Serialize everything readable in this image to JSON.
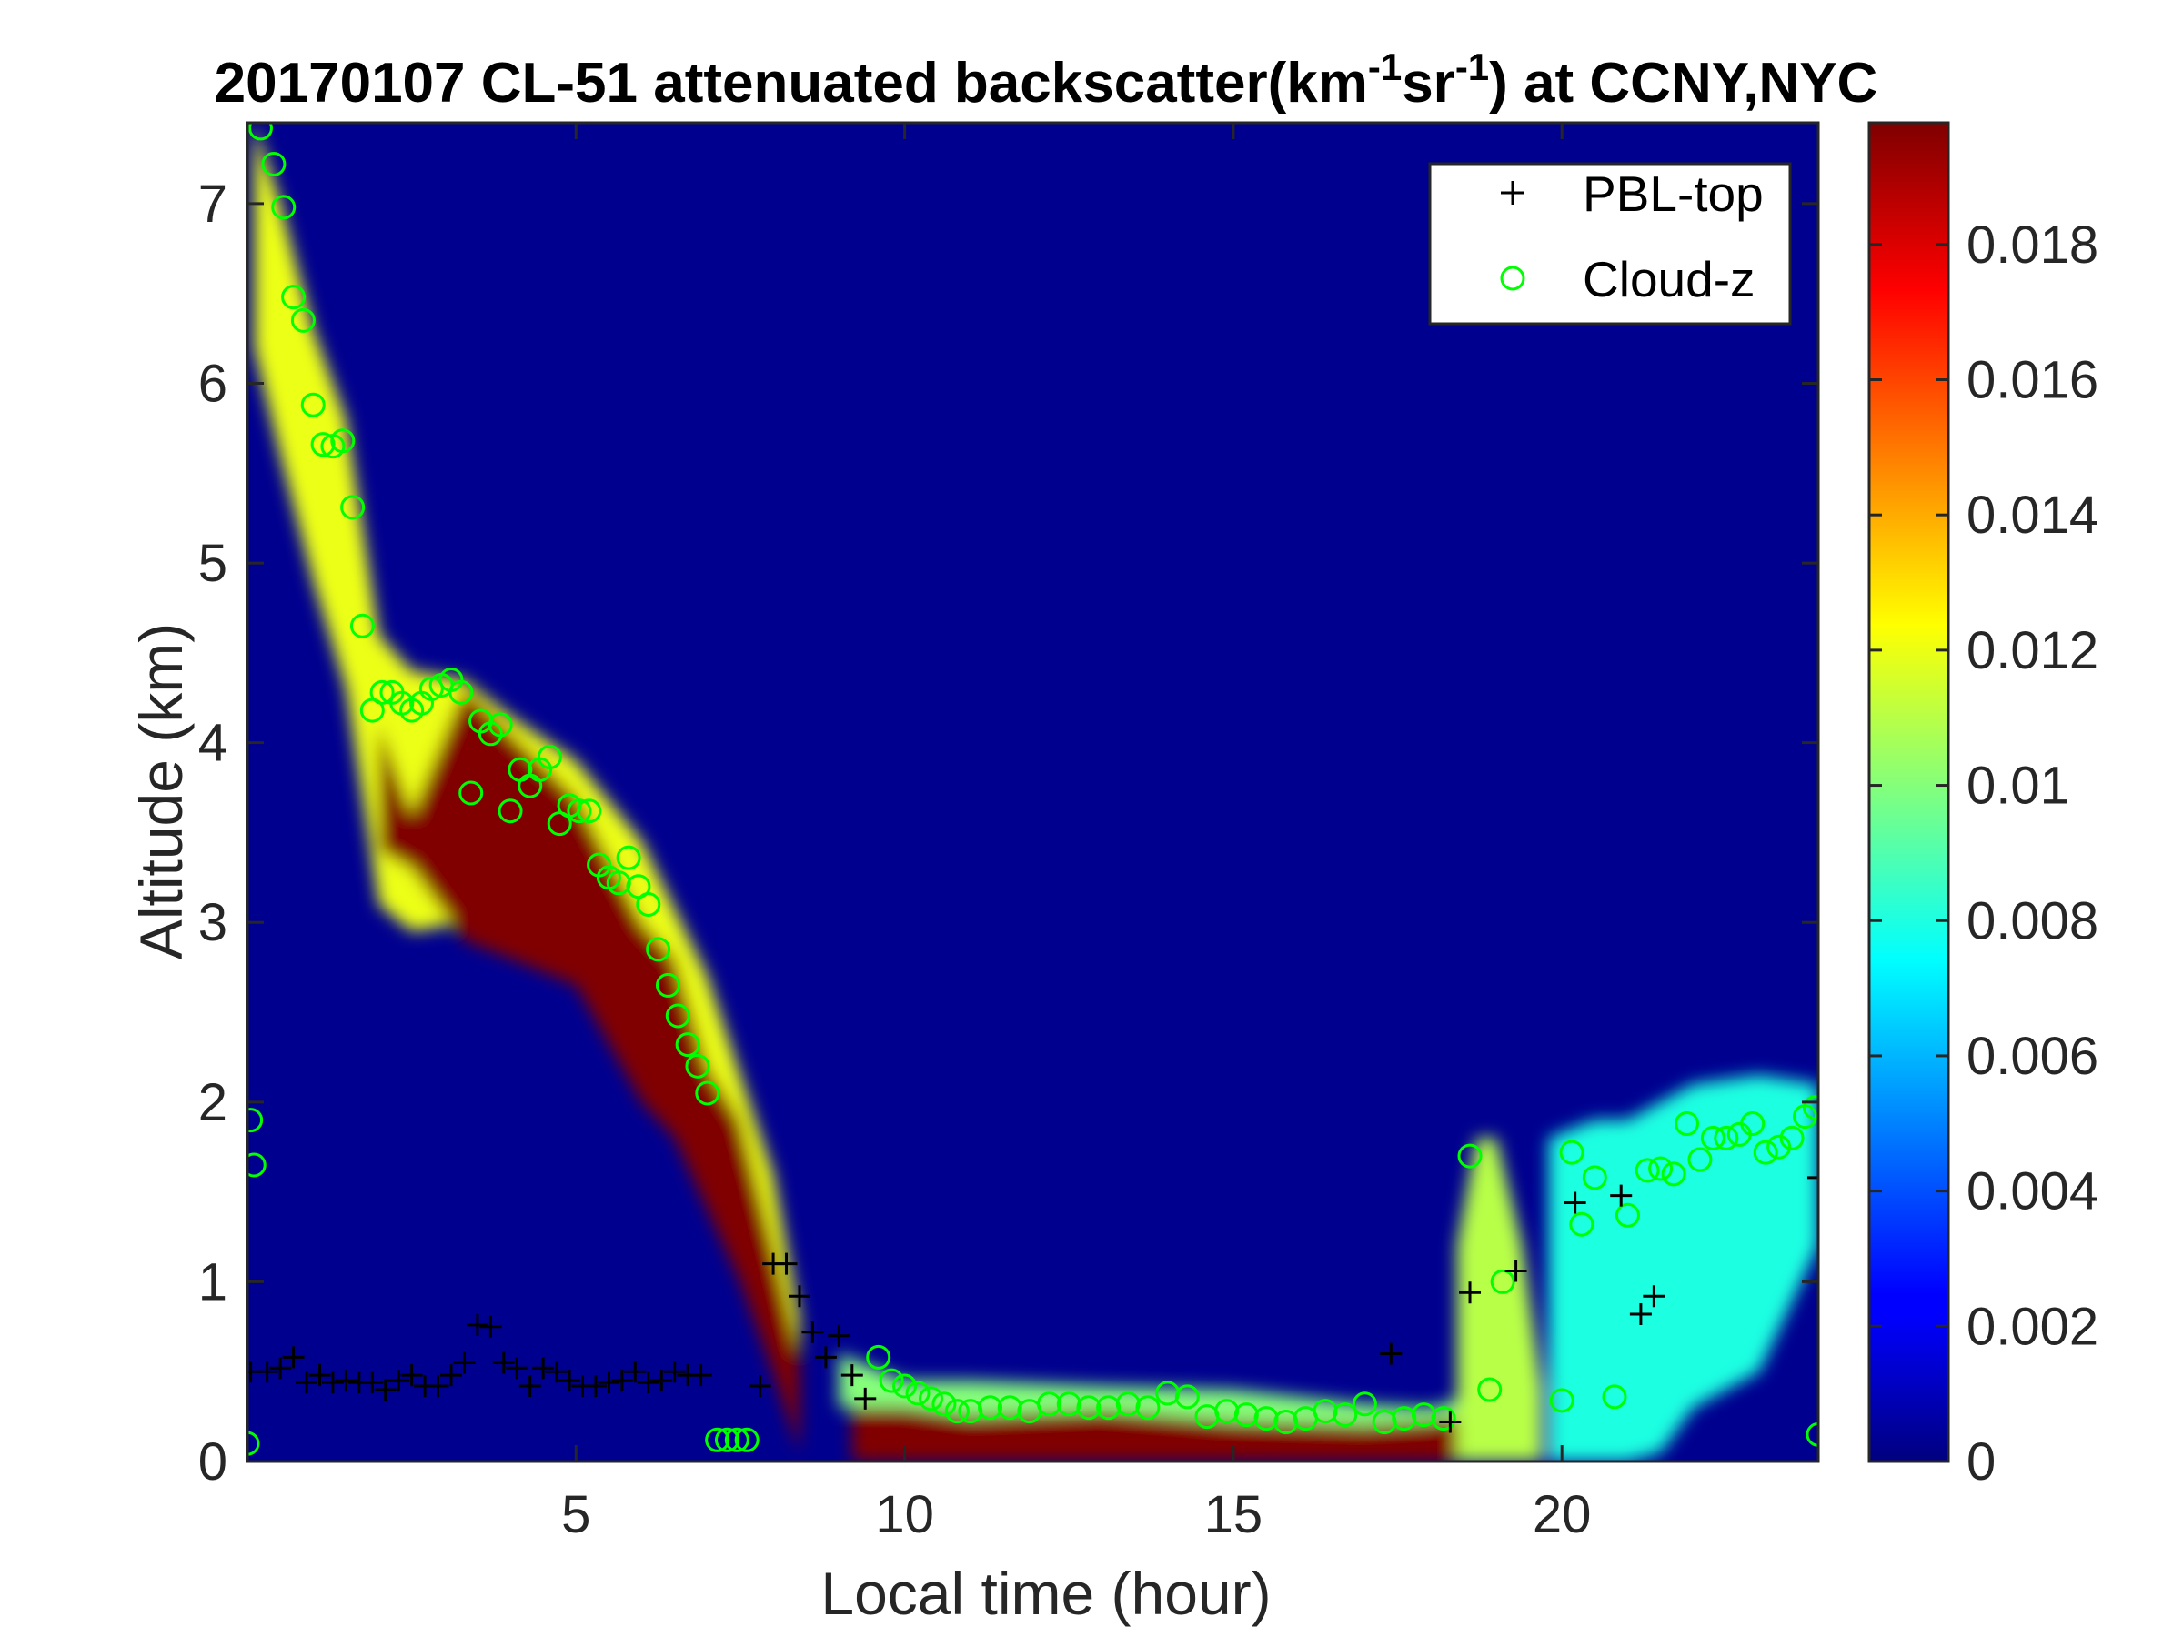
{
  "chart_data": {
    "type": "heatmap",
    "title": {
      "prefix": "20170107  CL-51 attenuated backscatter(km",
      "sup1": "-1",
      "mid": "sr",
      "sup2": "-1",
      "suffix": ") at CCNY,NYC"
    },
    "xlabel": "Local time (hour)",
    "ylabel": "Altitude (km)",
    "xlim": [
      0,
      23.9
    ],
    "ylim": [
      0,
      7.45
    ],
    "xticks": [
      5,
      10,
      15,
      20
    ],
    "yticks": [
      0,
      1,
      2,
      3,
      4,
      5,
      6,
      7
    ],
    "colorbar": {
      "colormap": "jet",
      "range": [
        0,
        0.0198
      ],
      "ticks": [
        0,
        0.002,
        0.004,
        0.006,
        0.008,
        0.01,
        0.012,
        0.014,
        0.016,
        0.018
      ]
    },
    "legend": {
      "placement": "top-right",
      "entries": [
        {
          "label": "PBL-top",
          "marker": "+",
          "color": "#000000"
        },
        {
          "label": "Cloud-z",
          "marker": "o",
          "color": "#00ff00"
        }
      ]
    },
    "backscatter_layers": [
      {
        "x": [
          0.1,
          0.5,
          1.0,
          1.5,
          2.0,
          2.5,
          3.3,
          4.0,
          5.0,
          6.0,
          7.0,
          8.0,
          8.4
        ],
        "bottom": [
          6.2,
          5.6,
          4.9,
          4.3,
          3.1,
          2.95,
          3.0,
          2.85,
          2.7,
          2.2,
          1.6,
          0.7,
          0.1
        ],
        "top": [
          7.45,
          7.0,
          6.3,
          5.8,
          4.6,
          4.4,
          4.35,
          4.15,
          3.9,
          3.45,
          2.7,
          1.6,
          0.8
        ],
        "intensity": 0.012
      },
      {
        "x": [
          2.0,
          2.5,
          3.3,
          4.0,
          5.0,
          6.0,
          6.5,
          7.0,
          7.5,
          8.0,
          8.4
        ],
        "bottom": [
          3.4,
          3.3,
          2.9,
          2.8,
          2.65,
          2.0,
          1.8,
          1.4,
          1.0,
          0.5,
          0.05
        ],
        "top": [
          4.1,
          3.6,
          4.3,
          4.05,
          3.7,
          3.0,
          2.8,
          2.2,
          1.9,
          1.2,
          0.6
        ],
        "intensity": 0.02
      },
      {
        "x": [
          9.2,
          10.0,
          11.0,
          13.0,
          15.0,
          17.0,
          18.0,
          18.5
        ],
        "bottom": [
          0.0,
          0.0,
          0.0,
          0.0,
          0.0,
          0.0,
          0.0,
          0.0
        ],
        "top": [
          0.3,
          0.3,
          0.25,
          0.28,
          0.22,
          0.2,
          0.22,
          0.25
        ],
        "intensity": 0.02
      },
      {
        "x": [
          9.0,
          10.0,
          11.0,
          13.0,
          15.0,
          17.0,
          18.0,
          18.5
        ],
        "bottom": [
          0.3,
          0.3,
          0.25,
          0.28,
          0.22,
          0.2,
          0.22,
          0.25
        ],
        "top": [
          0.6,
          0.45,
          0.45,
          0.42,
          0.4,
          0.32,
          0.3,
          0.35
        ],
        "intensity": 0.01
      },
      {
        "x": [
          18.6,
          18.9,
          19.2,
          19.4
        ],
        "bottom": [
          0.0,
          0.0,
          0.0,
          0.0
        ],
        "top": [
          1.4,
          1.5,
          1.0,
          0.5
        ],
        "intensity": 0.02
      },
      {
        "x": [
          18.4,
          18.7,
          19.0,
          19.4,
          19.7
        ],
        "bottom": [
          0.0,
          0.0,
          0.0,
          0.0,
          0.0
        ],
        "top": [
          1.2,
          1.8,
          1.8,
          1.2,
          0.4
        ],
        "intensity": 0.011
      },
      {
        "x": [
          20.2,
          20.8,
          21.5,
          22.0,
          22.5,
          23.0,
          23.5,
          23.9
        ],
        "bottom": [
          0.9,
          0.6,
          0.75,
          1.0,
          1.2,
          1.25,
          1.35,
          1.5
        ],
        "top": [
          1.55,
          1.5,
          1.6,
          1.8,
          2.0,
          2.0,
          1.95,
          1.9
        ],
        "intensity": 0.02
      },
      {
        "x": [
          19.8,
          20.5,
          21.0,
          21.5,
          22.0,
          23.0,
          23.9
        ],
        "bottom": [
          0.0,
          0.0,
          0.0,
          0.05,
          0.3,
          0.5,
          1.2
        ],
        "top": [
          1.8,
          1.9,
          1.9,
          2.0,
          2.1,
          2.15,
          2.1
        ],
        "intensity": 0.008
      }
    ],
    "pbl_top": {
      "x": [
        0.05,
        0.3,
        0.5,
        0.7,
        0.9,
        1.1,
        1.3,
        1.5,
        1.7,
        1.9,
        2.1,
        2.3,
        2.5,
        2.7,
        2.9,
        3.1,
        3.3,
        3.5,
        3.7,
        3.9,
        4.1,
        4.3,
        4.5,
        4.7,
        4.9,
        5.1,
        5.3,
        5.5,
        5.7,
        5.9,
        6.1,
        6.3,
        6.5,
        6.7,
        6.9,
        7.8,
        8.0,
        8.2,
        8.4,
        8.6,
        8.8,
        9.0,
        9.2,
        9.4,
        17.4,
        18.3,
        18.6,
        19.3,
        20.2,
        20.9,
        21.2,
        21.4,
        23.9
      ],
      "y": [
        0.5,
        0.5,
        0.52,
        0.58,
        0.44,
        0.48,
        0.44,
        0.45,
        0.44,
        0.44,
        0.4,
        0.45,
        0.48,
        0.42,
        0.42,
        0.48,
        0.55,
        0.76,
        0.75,
        0.55,
        0.52,
        0.42,
        0.52,
        0.5,
        0.45,
        0.42,
        0.42,
        0.44,
        0.45,
        0.5,
        0.44,
        0.45,
        0.5,
        0.48,
        0.48,
        0.42,
        1.1,
        1.1,
        0.92,
        0.72,
        0.58,
        0.7,
        0.48,
        0.35,
        0.6,
        0.22,
        0.94,
        1.06,
        1.44,
        1.48,
        0.82,
        0.92,
        1.58
      ]
    },
    "cloud_z": {
      "x": [
        0.0,
        0.05,
        0.1,
        0.2,
        0.4,
        0.55,
        0.7,
        0.85,
        1.0,
        1.15,
        1.3,
        1.45,
        1.6,
        1.75,
        1.9,
        2.05,
        2.2,
        2.35,
        2.5,
        2.65,
        2.8,
        2.95,
        3.1,
        3.25,
        3.4,
        3.55,
        3.7,
        3.85,
        4.0,
        4.15,
        4.3,
        4.45,
        4.6,
        4.75,
        4.9,
        5.05,
        5.2,
        5.35,
        5.5,
        5.65,
        5.8,
        5.95,
        6.1,
        6.25,
        6.4,
        6.55,
        6.7,
        6.85,
        7.0,
        7.15,
        7.3,
        7.45,
        7.6,
        9.6,
        9.8,
        10.0,
        10.2,
        10.4,
        10.6,
        10.8,
        11.0,
        11.3,
        11.6,
        11.9,
        12.2,
        12.5,
        12.8,
        13.1,
        13.4,
        13.7,
        14.0,
        14.3,
        14.6,
        14.9,
        15.2,
        15.5,
        15.8,
        16.1,
        16.4,
        16.7,
        17.0,
        17.3,
        17.6,
        17.9,
        18.2,
        18.6,
        18.9,
        19.1,
        20.0,
        20.15,
        20.3,
        20.5,
        20.8,
        21.0,
        21.3,
        21.5,
        21.7,
        21.9,
        22.1,
        22.3,
        22.5,
        22.7,
        22.9,
        23.1,
        23.3,
        23.5,
        23.7,
        23.85,
        23.9
      ],
      "y": [
        0.1,
        1.9,
        1.65,
        7.42,
        7.22,
        6.98,
        6.48,
        6.35,
        5.88,
        5.66,
        5.65,
        5.68,
        5.31,
        4.65,
        4.18,
        4.28,
        4.28,
        4.22,
        4.18,
        4.22,
        4.3,
        4.32,
        4.35,
        4.28,
        3.72,
        4.12,
        4.05,
        4.1,
        3.62,
        3.85,
        3.76,
        3.85,
        3.92,
        3.55,
        3.65,
        3.62,
        3.62,
        3.32,
        3.25,
        3.22,
        3.36,
        3.2,
        3.1,
        2.85,
        2.65,
        2.48,
        2.32,
        2.2,
        2.05,
        0.12,
        0.12,
        0.12,
        0.12,
        0.58,
        0.45,
        0.42,
        0.38,
        0.35,
        0.32,
        0.28,
        0.28,
        0.3,
        0.3,
        0.28,
        0.32,
        0.32,
        0.3,
        0.3,
        0.32,
        0.3,
        0.38,
        0.36,
        0.25,
        0.28,
        0.26,
        0.24,
        0.22,
        0.24,
        0.28,
        0.26,
        0.32,
        0.22,
        0.24,
        0.26,
        0.24,
        1.7,
        0.4,
        1.0,
        0.34,
        1.72,
        1.32,
        1.58,
        0.36,
        1.37,
        1.62,
        1.63,
        1.6,
        1.88,
        1.68,
        1.8,
        1.8,
        1.82,
        1.88,
        1.72,
        1.75,
        1.8,
        1.92,
        1.97,
        0.15
      ]
    }
  }
}
